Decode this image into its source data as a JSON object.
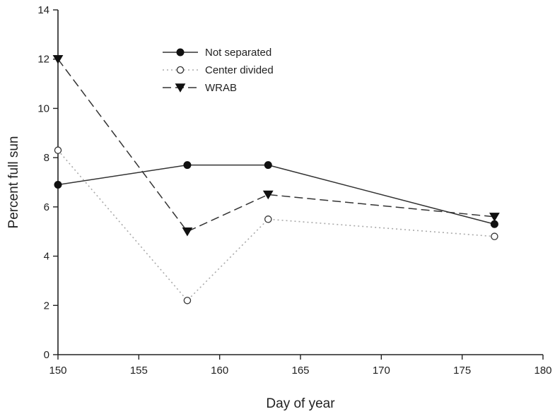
{
  "chart_data": {
    "type": "line",
    "title": "",
    "xlabel": "Day of year",
    "ylabel": "Percent full sun",
    "xlim": [
      150,
      180
    ],
    "ylim": [
      0,
      14
    ],
    "xticks": [
      150,
      155,
      160,
      165,
      170,
      175,
      180
    ],
    "yticks": [
      0,
      2,
      4,
      6,
      8,
      10,
      12,
      14
    ],
    "grid": false,
    "legend_position": "top-center",
    "series": [
      {
        "name": "Not separated",
        "marker": "filled-circle",
        "line_style": "solid",
        "color": "#333333",
        "x": [
          150,
          158,
          163,
          177
        ],
        "y": [
          6.9,
          7.7,
          7.7,
          5.3
        ]
      },
      {
        "name": "Center divided",
        "marker": "open-circle",
        "line_style": "dotted",
        "color": "#aaaaaa",
        "x": [
          150,
          158,
          163,
          177
        ],
        "y": [
          8.3,
          2.2,
          5.5,
          4.8
        ]
      },
      {
        "name": "WRAB",
        "marker": "filled-triangle-down",
        "line_style": "dashed",
        "color": "#333333",
        "x": [
          150,
          158,
          163,
          177
        ],
        "y": [
          12.0,
          5.0,
          6.5,
          5.6
        ]
      }
    ]
  }
}
